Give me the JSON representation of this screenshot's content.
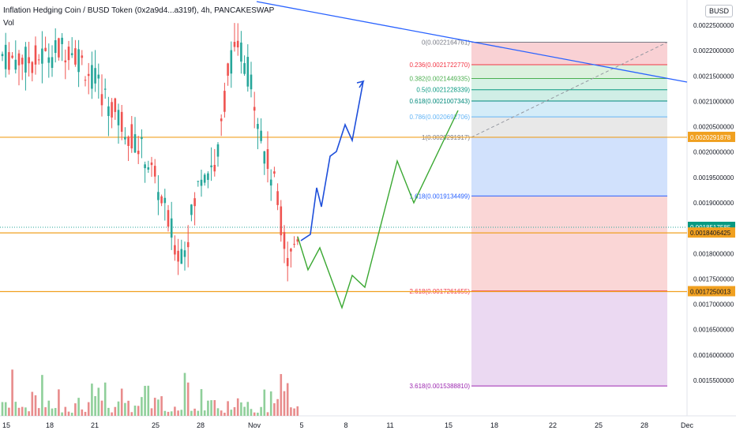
{
  "header": {
    "title": "Inflation Hedging Coin / BUSD Token (0x2a9d4...a319f), 4h, PANCAKESWAP",
    "volume_label": "Vol",
    "currency_button": "BUSD"
  },
  "colors": {
    "up": "#26a69a",
    "down": "#ef5350",
    "vol_up": "#8fcf9a",
    "vol_down": "#e88c8c",
    "trendline": "#2962ff",
    "projection_blue": "#1e4fdb",
    "projection_green": "#3aa832",
    "support_line": "#f0a020",
    "fib_levels": [
      "#787b86",
      "#f23645",
      "#4caf50",
      "#089981",
      "#00897b",
      "#64b5f6",
      "#787b86",
      "#2962ff",
      "#f23645",
      "#9c27b0"
    ]
  },
  "chart_data": {
    "type": "candlestick",
    "symbol": "Inflation Hedging Coin / BUSD Token",
    "interval": "4h",
    "exchange": "PANCAKESWAP",
    "y_axis": {
      "unit": "BUSD",
      "range": [
        0.00151,
        0.00226
      ],
      "tick_labels": [
        "0.0022500000",
        "0.0022000000",
        "0.0021500000",
        "0.0021000000",
        "0.0020500000",
        "0.0020000000",
        "0.0019500000",
        "0.0019000000",
        "0.0018500000",
        "0.0018000000",
        "0.0017500000",
        "0.0017000000",
        "0.0016500000",
        "0.0016000000",
        "0.0015500000"
      ],
      "tick_values": [
        0.00225,
        0.0022,
        0.00215,
        0.0021,
        0.00205,
        0.002,
        0.00195,
        0.0019,
        0.00185,
        0.0018,
        0.00175,
        0.0017,
        0.00165,
        0.0016,
        0.00155
      ]
    },
    "x_axis": {
      "tick_labels": [
        "15",
        "18",
        "21",
        "25",
        "28",
        "Nov",
        "5",
        "8",
        "11",
        "15",
        "18",
        "22",
        "25",
        "28",
        "Dec"
      ]
    },
    "fibonacci": [
      {
        "ratio": "0",
        "price": "0.0022164761",
        "label": "0(0.0022164761)"
      },
      {
        "ratio": "0.236",
        "price": "0.0021722770",
        "label": "0.236(0.0021722770)"
      },
      {
        "ratio": "0.382",
        "price": "0.0021449335",
        "label": "0.382(0.0021449335)"
      },
      {
        "ratio": "0.5",
        "price": "0.0021228339",
        "label": "0.5(0.0021228339)"
      },
      {
        "ratio": "0.618",
        "price": "0.0021007343",
        "label": "0.618(0.0021007343)"
      },
      {
        "ratio": "0.786",
        "price": "0.0020692706",
        "label": "0.786(0.0020692706)"
      },
      {
        "ratio": "1",
        "price": "0.0020291917",
        "label": "1(0.0020291917)"
      },
      {
        "ratio": "1.618",
        "price": "0.0019134499",
        "label": "1.618(0.0019134499)"
      },
      {
        "ratio": "2.618",
        "price": "0.0017261655",
        "label": "2.618(0.0017261655)"
      },
      {
        "ratio": "3.618",
        "price": "0.0015388810",
        "label": "3.618(0.0015388810)"
      }
    ],
    "price_labels": [
      {
        "value": 0.0020291878,
        "text": "0.0020291878",
        "bg": "#f0a020",
        "fg": "#ffffff"
      },
      {
        "value": 0.0018517585,
        "text": "0.0018517585",
        "bg": "#089981",
        "fg": "#ffffff"
      },
      {
        "value": 0.0018406425,
        "text": "0.0018406425",
        "bg": "#f0a020",
        "fg": "#131722"
      },
      {
        "value": 0.0017250013,
        "text": "0.0017250013",
        "bg": "#f0a020",
        "fg": "#131722"
      }
    ],
    "horizontal_lines": [
      0.0020291878,
      0.0018406425,
      0.0017250013
    ],
    "current_price": 0.0018517585
  }
}
